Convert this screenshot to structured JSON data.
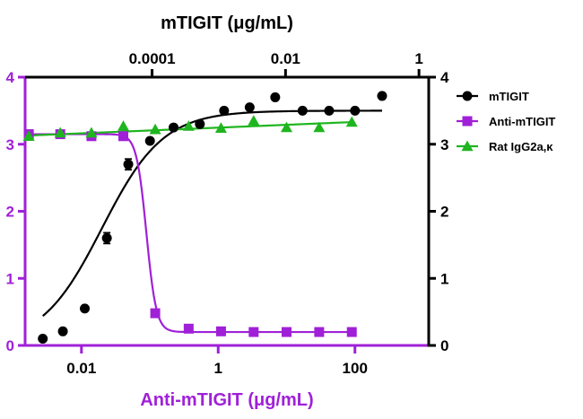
{
  "chart_data": {
    "type": "scatter",
    "title": "",
    "xlabel_bottom": "Anti-mTIGIT (μg/mL)",
    "xlabel_top": "mTIGIT (μg/mL)",
    "ylabel": "",
    "x_scale": "log",
    "x_bottom_range": [
      0.0015,
      1200
    ],
    "x_bottom_ticks": [
      {
        "value": 0.01,
        "label": "0.01"
      },
      {
        "value": 1,
        "label": "1"
      },
      {
        "value": 100,
        "label": "100"
      }
    ],
    "x_top_range": [
      1.25e-06,
      1.4
    ],
    "x_top_ticks": [
      {
        "value": 0.0001,
        "label": "0.0001"
      },
      {
        "value": 0.01,
        "label": "0.01"
      },
      {
        "value": 1,
        "label": "1"
      }
    ],
    "y_left_range": [
      0,
      4
    ],
    "y_left_ticks": [
      "0",
      "1",
      "2",
      "3",
      "4"
    ],
    "y_right_range": [
      0,
      4
    ],
    "y_right_ticks": [
      "0",
      "1",
      "2",
      "3",
      "4"
    ],
    "grid": false,
    "legend_position": "top-right",
    "colors": {
      "mTIGIT": "#000000",
      "Anti-mTIGIT": "#a020d8",
      "Rat IgG2a,κ": "#1fb51f",
      "left_axis": "#a020d8",
      "right_axis": "#000000"
    },
    "series": [
      {
        "name": "mTIGIT",
        "x_axis": "top",
        "y_axis": "right",
        "marker": "circle",
        "x": [
          2.3e-06,
          4.6e-06,
          9.8e-06,
          2.1e-05,
          4.4e-05,
          9.3e-05,
          0.00021,
          0.00052,
          0.0012,
          0.0029,
          0.007,
          0.018,
          0.045,
          0.11,
          0.28
        ],
        "y": [
          0.1,
          0.21,
          0.55,
          1.6,
          2.7,
          3.05,
          3.25,
          3.3,
          3.5,
          3.55,
          3.7,
          3.5,
          3.5,
          3.5,
          3.72
        ],
        "error": [
          0.02,
          0.02,
          0.03,
          0.08,
          0.08,
          0.04,
          0.03,
          0.03,
          0.03,
          0.03,
          0.03,
          0.03,
          0.03,
          0.03,
          0.03
        ],
        "fit_x": [
          2.3e-06,
          0.28
        ],
        "fit_logEC50": -4.75,
        "fit_hill": 0.95,
        "fit_bottom": 0.0,
        "fit_top": 3.5
      },
      {
        "name": "Anti-mTIGIT",
        "x_axis": "bottom",
        "y_axis": "left",
        "marker": "square",
        "x": [
          0.0017,
          0.0049,
          0.014,
          0.041,
          0.12,
          0.37,
          1.1,
          3.3,
          10,
          30,
          90
        ],
        "y": [
          3.15,
          3.15,
          3.12,
          3.12,
          0.48,
          0.25,
          0.21,
          0.2,
          0.2,
          0.2,
          0.2
        ],
        "fit_x": [
          0.0017,
          90
        ],
        "fit_logEC50": -1.05,
        "fit_hill": -6,
        "fit_bottom": 0.2,
        "fit_top": 3.15
      },
      {
        "name": "Rat IgG2a,κ",
        "x_axis": "bottom",
        "y_axis": "left",
        "marker": "triangle",
        "x": [
          0.0017,
          0.0049,
          0.014,
          0.041,
          0.12,
          0.37,
          1.1,
          3.3,
          10,
          30,
          90
        ],
        "y": [
          3.12,
          3.17,
          3.17,
          3.27,
          3.22,
          3.27,
          3.24,
          3.35,
          3.25,
          3.25,
          3.33
        ],
        "fit_x": [
          0.0017,
          90
        ],
        "fit_start": 3.13,
        "fit_end": 3.33
      }
    ]
  }
}
